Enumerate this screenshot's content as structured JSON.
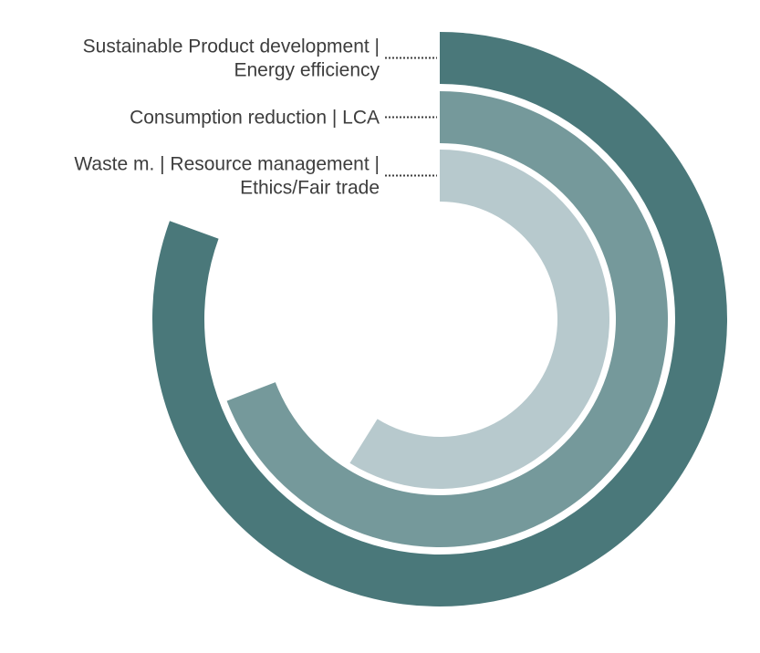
{
  "chart_data": {
    "type": "radial-bar",
    "start_angle": "top",
    "direction": "clockwise",
    "max": 360,
    "series": [
      {
        "label_lines": [
          "Sustainable Product development |",
          "Energy efficiency"
        ],
        "value": 290,
        "color": "#4a787a"
      },
      {
        "label_lines": [
          "Consumption reduction | LCA"
        ],
        "value": 249,
        "color": "#75999b"
      },
      {
        "label_lines": [
          "Waste m. | Resource management |",
          "Ethics/Fair trade"
        ],
        "value": 212,
        "color": "#b7c9cd"
      }
    ],
    "legend": "left-of-rings"
  }
}
